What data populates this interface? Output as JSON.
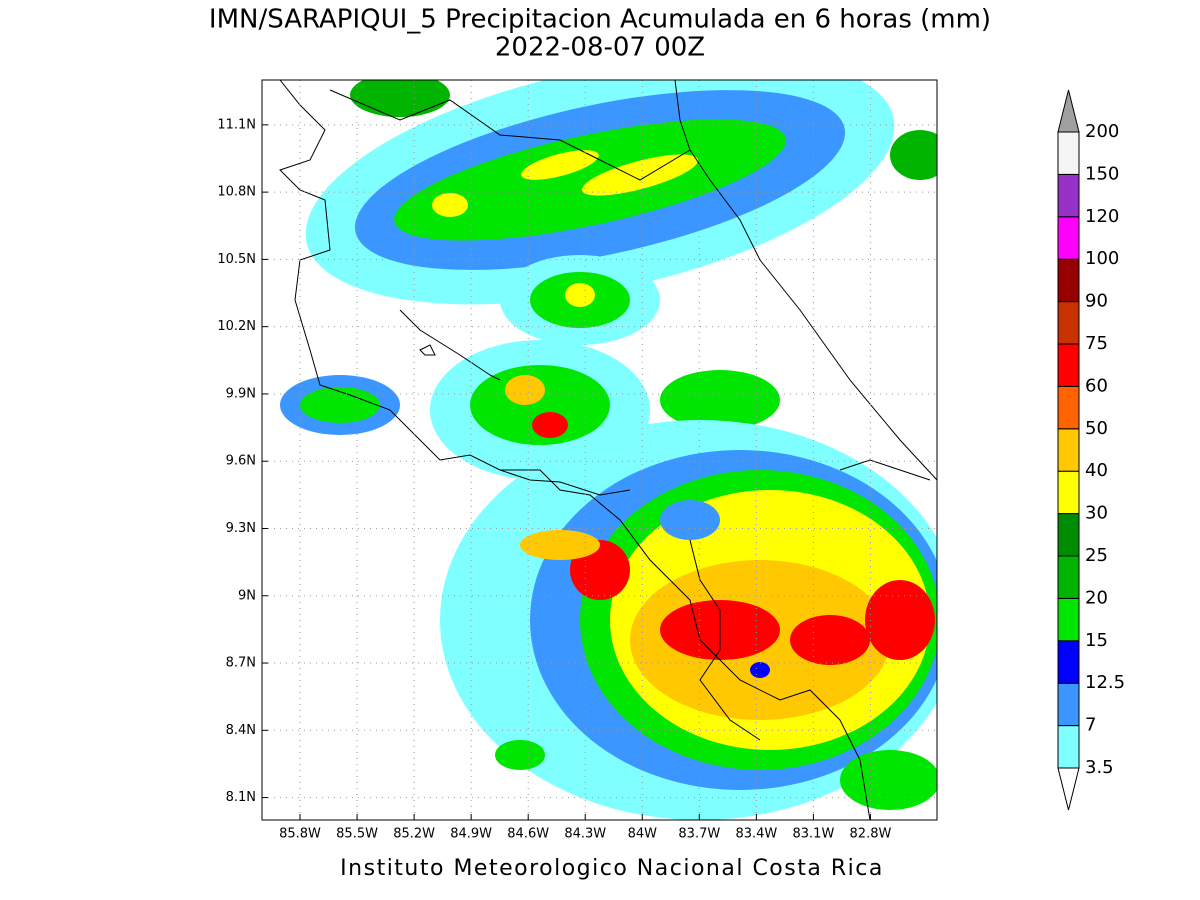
{
  "title": "IMN/SARAPIQUI_5 Precipitacion Acumulada en 6 horas (mm)",
  "subtitle": "2022-08-07 00Z",
  "footer": "Instituto Meteorologico Nacional Costa Rica",
  "map": {
    "xlim": [
      -86.0,
      -82.45
    ],
    "ylim": [
      8.0,
      11.3
    ],
    "xticks": [
      {
        "value": -85.8,
        "label": "85.8W"
      },
      {
        "value": -85.5,
        "label": "85.5W"
      },
      {
        "value": -85.2,
        "label": "85.2W"
      },
      {
        "value": -84.9,
        "label": "84.9W"
      },
      {
        "value": -84.6,
        "label": "84.6W"
      },
      {
        "value": -84.3,
        "label": "84.3W"
      },
      {
        "value": -84.0,
        "label": "84W"
      },
      {
        "value": -83.7,
        "label": "83.7W"
      },
      {
        "value": -83.4,
        "label": "83.4W"
      },
      {
        "value": -83.1,
        "label": "83.1W"
      },
      {
        "value": -82.8,
        "label": "82.8W"
      }
    ],
    "yticks": [
      {
        "value": 11.1,
        "label": "11.1N"
      },
      {
        "value": 10.8,
        "label": "10.8N"
      },
      {
        "value": 10.5,
        "label": "10.5N"
      },
      {
        "value": 10.2,
        "label": "10.2N"
      },
      {
        "value": 9.9,
        "label": "9.9N"
      },
      {
        "value": 9.6,
        "label": "9.6N"
      },
      {
        "value": 9.3,
        "label": "9.3N"
      },
      {
        "value": 9.0,
        "label": "9N"
      },
      {
        "value": 8.7,
        "label": "8.7N"
      },
      {
        "value": 8.4,
        "label": "8.4N"
      },
      {
        "value": 8.1,
        "label": "8.1N"
      }
    ],
    "grid": true
  },
  "colorbar": {
    "levels": [
      3.5,
      7,
      12.5,
      15,
      20,
      25,
      30,
      40,
      50,
      60,
      75,
      90,
      100,
      120,
      150,
      200
    ],
    "colors": [
      "#7fffff",
      "#3c96ff",
      "#0000ff",
      "#00e600",
      "#00b400",
      "#008c00",
      "#ffff00",
      "#ffc800",
      "#ff6400",
      "#ff0000",
      "#c83200",
      "#960000",
      "#ff00ff",
      "#9632c8",
      "#f5f5f5"
    ],
    "under_color": "#ffffff",
    "over_color": "#a0a0a0"
  }
}
